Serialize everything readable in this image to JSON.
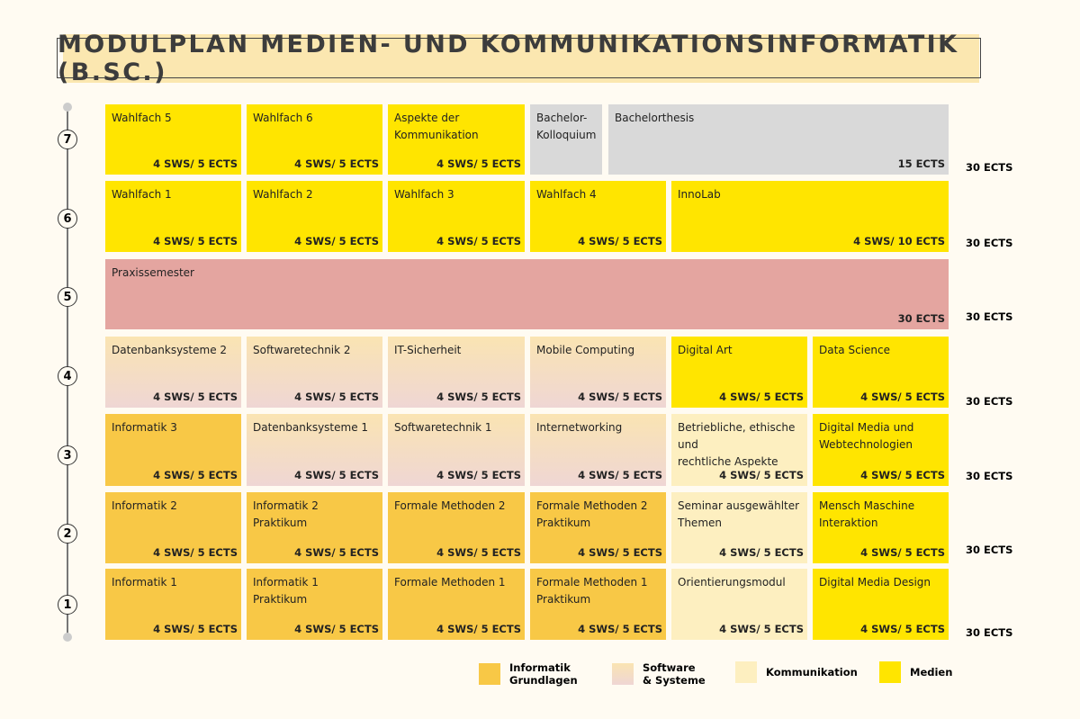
{
  "title": "MODULPLAN MEDIEN- UND KOMMUNIKATIONSINFORMATIK (B.SC.)",
  "colors": {
    "informatik": "#f8c846",
    "software": "linear-gradient(#fae4b2,#efd6d4)",
    "kommunikation": "#fdefc0",
    "medien": "#ffe500",
    "other": "#d9d9d9",
    "praxis": "#e4a5a0"
  },
  "semesters": [
    {
      "num": "7",
      "total": "30 ECTS",
      "modules": [
        {
          "name": "Wahlfach 5",
          "credits": "4 SWS/ 5 ECTS",
          "cat": "medien"
        },
        {
          "name": "Wahlfach 6",
          "credits": "4 SWS/ 5 ECTS",
          "cat": "medien"
        },
        {
          "name": "Aspekte der\nKommunikation",
          "credits": "4 SWS/ 5 ECTS",
          "cat": "medien"
        },
        {
          "name": "Bachelor-\nKolloquium",
          "credits": "",
          "cat": "other"
        },
        {
          "name": "Bachelorthesis",
          "credits": "15 ECTS",
          "cat": "other"
        }
      ]
    },
    {
      "num": "6",
      "total": "30 ECTS",
      "modules": [
        {
          "name": "Wahlfach 1",
          "credits": "4 SWS/ 5 ECTS",
          "cat": "medien"
        },
        {
          "name": "Wahlfach 2",
          "credits": "4 SWS/ 5 ECTS",
          "cat": "medien"
        },
        {
          "name": "Wahlfach 3",
          "credits": "4 SWS/ 5 ECTS",
          "cat": "medien"
        },
        {
          "name": "Wahlfach 4",
          "credits": "4 SWS/ 5 ECTS",
          "cat": "medien"
        },
        {
          "name": "InnoLab",
          "credits": "4 SWS/ 10 ECTS",
          "cat": "medien"
        }
      ]
    },
    {
      "num": "5",
      "total": "30 ECTS",
      "modules": [
        {
          "name": "Praxissemester",
          "credits": "30 ECTS",
          "cat": "praxis"
        }
      ]
    },
    {
      "num": "4",
      "total": "30 ECTS",
      "modules": [
        {
          "name": "Datenbanksysteme 2",
          "credits": "4 SWS/ 5 ECTS",
          "cat": "software"
        },
        {
          "name": "Softwaretechnik 2",
          "credits": "4 SWS/ 5 ECTS",
          "cat": "software"
        },
        {
          "name": "IT-Sicherheit",
          "credits": "4 SWS/ 5 ECTS",
          "cat": "software"
        },
        {
          "name": "Mobile Computing",
          "credits": "4 SWS/ 5 ECTS",
          "cat": "software"
        },
        {
          "name": "Digital Art",
          "credits": "4 SWS/ 5 ECTS",
          "cat": "medien"
        },
        {
          "name": "Data Science",
          "credits": "4 SWS/ 5 ECTS",
          "cat": "medien"
        }
      ]
    },
    {
      "num": "3",
      "total": "30 ECTS",
      "modules": [
        {
          "name": "Informatik 3",
          "credits": "4 SWS/ 5 ECTS",
          "cat": "informatik"
        },
        {
          "name": "Datenbanksysteme 1",
          "credits": "4 SWS/ 5 ECTS",
          "cat": "software"
        },
        {
          "name": "Softwaretechnik 1",
          "credits": "4 SWS/ 5 ECTS",
          "cat": "software"
        },
        {
          "name": "Internetworking",
          "credits": "4 SWS/ 5 ECTS",
          "cat": "software"
        },
        {
          "name": "Betriebliche, ethische und\nrechtliche Aspekte",
          "credits": "4 SWS/ 5 ECTS",
          "cat": "kommunikation"
        },
        {
          "name": "Digital Media und\nWebtechnologien",
          "credits": "4 SWS/ 5 ECTS",
          "cat": "medien"
        }
      ]
    },
    {
      "num": "2",
      "total": "30 ECTS",
      "modules": [
        {
          "name": "Informatik 2",
          "credits": "4 SWS/ 5 ECTS",
          "cat": "informatik"
        },
        {
          "name": "Informatik 2\nPraktikum",
          "credits": "4 SWS/ 5 ECTS",
          "cat": "informatik"
        },
        {
          "name": "Formale Methoden 2",
          "credits": "4 SWS/ 5 ECTS",
          "cat": "informatik"
        },
        {
          "name": "Formale Methoden 2\nPraktikum",
          "credits": "4 SWS/ 5 ECTS",
          "cat": "informatik"
        },
        {
          "name": "Seminar ausgewählter\nThemen",
          "credits": "4 SWS/ 5 ECTS",
          "cat": "kommunikation"
        },
        {
          "name": "Mensch Maschine\nInteraktion",
          "credits": "4 SWS/ 5 ECTS",
          "cat": "medien"
        }
      ]
    },
    {
      "num": "1",
      "total": "30 ECTS",
      "modules": [
        {
          "name": "Informatik 1",
          "credits": "4 SWS/ 5 ECTS",
          "cat": "informatik"
        },
        {
          "name": "Informatik 1\nPraktikum",
          "credits": "4 SWS/ 5 ECTS",
          "cat": "informatik"
        },
        {
          "name": "Formale Methoden 1",
          "credits": "4 SWS/ 5 ECTS",
          "cat": "informatik"
        },
        {
          "name": "Formale Methoden 1\nPraktikum",
          "credits": "4 SWS/ 5 ECTS",
          "cat": "informatik"
        },
        {
          "name": "Orientierungsmodul",
          "credits": "4 SWS/ 5 ECTS",
          "cat": "kommunikation"
        },
        {
          "name": "Digital Media Design",
          "credits": "4 SWS/ 5 ECTS",
          "cat": "medien"
        }
      ]
    }
  ],
  "legend": [
    {
      "label": "Informatik\nGrundlagen",
      "cat": "informatik"
    },
    {
      "label": "Software\n& Systeme",
      "cat": "software"
    },
    {
      "label": "Kommunikation",
      "cat": "kommunikation"
    },
    {
      "label": "Medien",
      "cat": "medien"
    }
  ]
}
